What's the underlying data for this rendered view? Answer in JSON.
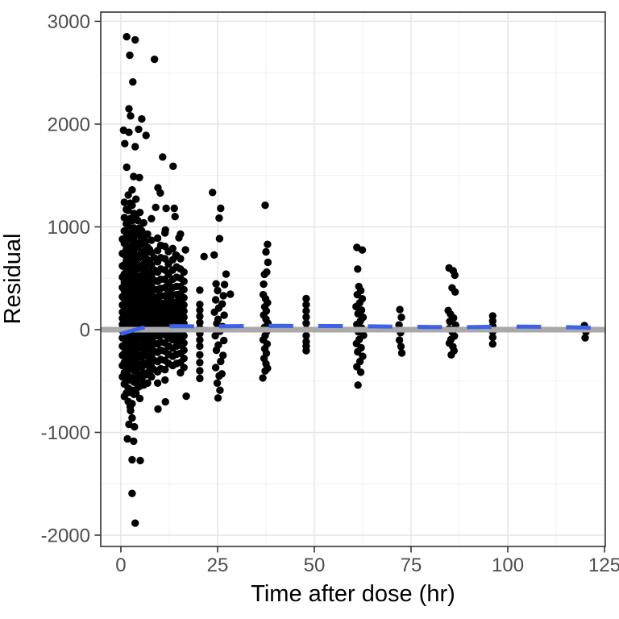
{
  "chart_data": {
    "type": "scatter",
    "title": "",
    "xlabel": "Time after dose (hr)",
    "ylabel": "Residual",
    "xlim": [
      -5.2,
      125.2
    ],
    "ylim": [
      -2110,
      3090
    ],
    "x_ticks": [
      0,
      25,
      50,
      75,
      100,
      125
    ],
    "y_ticks": [
      3000,
      2000,
      1000,
      0,
      -1000,
      -2000
    ],
    "x_minor_ticks": [
      12.5,
      37.5,
      62.5,
      87.5,
      112.5
    ],
    "y_minor_ticks": [
      2500,
      1500,
      500,
      -500,
      -1500
    ],
    "grid": true,
    "legend": "none",
    "point_radius": 4.7,
    "colors": {
      "point": "#000000",
      "ref_line": "#a9a9a9",
      "smooth": "#3d62e7",
      "grid_major": "#e5e5e5",
      "grid_minor": "#f2f2f2",
      "panel_border": "#333333",
      "tick_mark": "#333333",
      "tick_text": "#4d4d4d",
      "title_text": "#000000"
    },
    "ref_line": {
      "y": 0,
      "width": 7
    },
    "smooth": {
      "style": "dashed",
      "width": 5,
      "dash": [
        30.5,
        31
      ],
      "points": [
        [
          0,
          -42
        ],
        [
          1.5,
          -25
        ],
        [
          3,
          -8
        ],
        [
          5,
          12
        ],
        [
          7,
          25
        ],
        [
          10,
          32
        ],
        [
          15,
          34
        ],
        [
          20,
          31
        ],
        [
          25,
          32
        ],
        [
          30,
          34
        ],
        [
          35,
          36
        ],
        [
          40,
          37
        ],
        [
          45,
          36
        ],
        [
          50,
          36
        ],
        [
          55,
          35
        ],
        [
          60,
          34
        ],
        [
          65,
          32
        ],
        [
          70,
          29
        ],
        [
          75,
          28
        ],
        [
          80,
          26
        ],
        [
          85,
          25
        ],
        [
          90,
          24
        ],
        [
          95,
          27
        ],
        [
          100,
          30
        ],
        [
          105,
          29
        ],
        [
          110,
          27
        ],
        [
          115,
          24
        ],
        [
          122,
          18
        ]
      ]
    },
    "columns": [
      {
        "t": 0.4,
        "v": [
          880,
          740,
          620,
          510,
          410,
          320,
          240,
          170,
          110,
          50,
          -10,
          -80,
          -160,
          -250,
          -350,
          -460
        ]
      },
      {
        "t": 0.9,
        "v": [
          1240,
          1090,
          960,
          840,
          730,
          630,
          540,
          460,
          380,
          300,
          230,
          170,
          110,
          50,
          -10,
          -80,
          -150,
          -230,
          -320,
          -420,
          -530,
          -650
        ]
      },
      {
        "t": 1.4,
        "v": [
          1170,
          1030,
          900,
          780,
          670,
          570,
          490,
          410,
          330,
          260,
          200,
          140,
          80,
          20,
          -50,
          -120,
          -200,
          -290,
          -390,
          -500,
          -620
        ]
      },
      {
        "t": 1.9,
        "v": [
          1310,
          1160,
          1010,
          880,
          760,
          650,
          550,
          460,
          380,
          310,
          240,
          180,
          120,
          60,
          0,
          -70,
          -150,
          -240,
          -340,
          -450,
          -570,
          -700
        ]
      },
      {
        "t": 2.4,
        "v": [
          1230,
          1080,
          940,
          810,
          700,
          600,
          500,
          420,
          340,
          270,
          210,
          150,
          90,
          30,
          -40,
          -110,
          -190,
          -280,
          -380,
          -490,
          -610,
          -750
        ]
      },
      {
        "t": 2.9,
        "v": [
          1360,
          1210,
          1060,
          920,
          790,
          670,
          560,
          470,
          390,
          310,
          240,
          180,
          120,
          60,
          -10,
          -90,
          -170,
          -260,
          -360,
          -470,
          -590,
          -720,
          -860
        ]
      },
      {
        "t": 3.4,
        "v": [
          1130,
          990,
          860,
          740,
          640,
          540,
          460,
          380,
          300,
          240,
          180,
          120,
          60,
          0,
          -60,
          -130,
          -210,
          -300,
          -400,
          -510,
          -630
        ]
      },
      {
        "t": 3.9,
        "v": [
          1270,
          1110,
          960,
          830,
          710,
          610,
          510,
          430,
          350,
          280,
          210,
          150,
          90,
          30,
          -40,
          -120,
          -200,
          -290,
          -390,
          -500,
          -620
        ]
      },
      {
        "t": 4.4,
        "v": [
          1060,
          920,
          800,
          690,
          590,
          500,
          420,
          340,
          270,
          210,
          150,
          90,
          30,
          -30,
          -100,
          -180,
          -260,
          -350,
          -450,
          -560
        ]
      },
      {
        "t": 4.9,
        "v": [
          1140,
          990,
          850,
          730,
          620,
          520,
          440,
          360,
          290,
          220,
          160,
          100,
          40,
          -20,
          -90,
          -170,
          -250,
          -340,
          -440,
          -550,
          -670
        ]
      },
      {
        "t": 5.4,
        "v": [
          960,
          830,
          710,
          600,
          500,
          420,
          340,
          270,
          210,
          150,
          90,
          30,
          -30,
          -100,
          -180,
          -270,
          -370,
          -480
        ]
      },
      {
        "t": 5.9,
        "v": [
          1040,
          890,
          760,
          640,
          540,
          450,
          370,
          300,
          230,
          170,
          110,
          50,
          -10,
          -80,
          -160,
          -240,
          -330,
          -430,
          -540
        ]
      },
      {
        "t": 6.4,
        "v": [
          860,
          740,
          630,
          530,
          440,
          360,
          290,
          220,
          160,
          100,
          40,
          -20,
          -90,
          -170,
          -250,
          -340,
          -440
        ]
      },
      {
        "t": 6.9,
        "v": [
          930,
          800,
          680,
          570,
          470,
          390,
          310,
          240,
          180,
          120,
          60,
          0,
          -70,
          -150,
          -230,
          -320,
          -420,
          -520
        ]
      },
      {
        "t": 7.4,
        "v": [
          780,
          660,
          560,
          470,
          390,
          310,
          240,
          180,
          120,
          60,
          0,
          -60,
          -130,
          -210,
          -300,
          -400
        ]
      },
      {
        "t": 7.9,
        "v": [
          1080,
          870,
          750,
          630,
          530,
          440,
          360,
          290,
          220,
          160,
          100,
          40,
          -20,
          -90,
          -170,
          -260,
          -360,
          -460
        ]
      },
      {
        "t": 8.6,
        "v": [
          700,
          580,
          480,
          390,
          310,
          240,
          180,
          120,
          60,
          0,
          -60,
          -130,
          -210,
          -300,
          -390
        ]
      },
      {
        "t": 9.5,
        "v": [
          890,
          770,
          660,
          560,
          470,
          390,
          320,
          250,
          190,
          130,
          70,
          10,
          -60,
          -140,
          -220,
          -310,
          -410,
          -520
        ]
      },
      {
        "t": 10.3,
        "v": [
          820,
          700,
          590,
          490,
          400,
          330,
          260,
          200,
          140,
          80,
          20,
          -50,
          -120,
          -200,
          -290,
          -380
        ]
      },
      {
        "t": 11.4,
        "v": [
          940,
          810,
          690,
          580,
          490,
          410,
          330,
          260,
          200,
          140,
          80,
          20,
          -50,
          -130,
          -210,
          -300,
          -390,
          -490
        ]
      },
      {
        "t": 12.3,
        "v": [
          760,
          640,
          540,
          450,
          370,
          300,
          230,
          170,
          110,
          50,
          -10,
          -80,
          -160,
          -240,
          -330
        ]
      },
      {
        "t": 13.4,
        "v": [
          790,
          680,
          580,
          490,
          410,
          340,
          270,
          210,
          150,
          90,
          30,
          -30,
          -100,
          -180,
          -260,
          -350
        ]
      },
      {
        "t": 14.4,
        "v": [
          720,
          610,
          510,
          420,
          340,
          270,
          210,
          150,
          90,
          30,
          -30,
          -90,
          -160,
          -240,
          -330
        ]
      },
      {
        "t": 15.4,
        "v": [
          690,
          590,
          500,
          420,
          350,
          280,
          220,
          160,
          100,
          40,
          -20,
          -80,
          -150,
          -230,
          -320,
          -420
        ]
      },
      {
        "t": 16.3,
        "v": [
          560,
          470,
          390,
          310,
          240,
          180,
          120,
          60,
          0,
          -60,
          -130,
          -200,
          -280,
          -370
        ]
      },
      {
        "t": 20.4,
        "v": [
          385,
          245,
          190,
          130,
          70,
          15,
          -40,
          -100,
          -160,
          -245,
          -320,
          -400,
          -475
        ]
      },
      {
        "t": 47.9,
        "v": [
          302,
          242,
          182,
          122,
          62,
          2,
          -58,
          -118,
          -162,
          -205
        ]
      },
      {
        "t": 96.1,
        "v": [
          134,
          84,
          34,
          -20,
          -76,
          -140
        ]
      }
    ],
    "points": [
      [
        1.5,
        2850
      ],
      [
        3.7,
        2820
      ],
      [
        2.3,
        2670
      ],
      [
        8.7,
        2630
      ],
      [
        3.1,
        2410
      ],
      [
        2.1,
        2150
      ],
      [
        2.5,
        2080
      ],
      [
        5.4,
        2050
      ],
      [
        4.6,
        1950
      ],
      [
        0.7,
        1940
      ],
      [
        2.1,
        1920
      ],
      [
        6.5,
        1890
      ],
      [
        1.0,
        1810
      ],
      [
        3.7,
        1780
      ],
      [
        10.8,
        1680
      ],
      [
        13.5,
        1590
      ],
      [
        1.5,
        1580
      ],
      [
        3.3,
        1490
      ],
      [
        4.8,
        1480
      ],
      [
        9.6,
        1380
      ],
      [
        10.2,
        1330
      ],
      [
        9.0,
        1190
      ],
      [
        11.7,
        1180
      ],
      [
        13.8,
        1180
      ],
      [
        14.0,
        1100
      ],
      [
        11.5,
        970
      ],
      [
        15.4,
        930
      ],
      [
        15.0,
        893
      ],
      [
        16.7,
        776
      ],
      [
        14.2,
        727
      ],
      [
        2.5,
        -789
      ],
      [
        9.6,
        -773
      ],
      [
        11.5,
        -703
      ],
      [
        16.9,
        -648
      ],
      [
        2.1,
        -922
      ],
      [
        3.5,
        -946
      ],
      [
        1.7,
        -1063
      ],
      [
        3.3,
        -1086
      ],
      [
        2.9,
        -1266
      ],
      [
        5.0,
        -1274
      ],
      [
        2.9,
        -1594
      ],
      [
        3.7,
        -1883
      ],
      [
        21.5,
        711
      ],
      [
        23.7,
        1335
      ],
      [
        25.8,
        1180
      ],
      [
        25.4,
        1085
      ],
      [
        25.5,
        885
      ],
      [
        24.1,
        727
      ],
      [
        27.2,
        540
      ],
      [
        24.6,
        445
      ],
      [
        26.8,
        438
      ],
      [
        25.0,
        380
      ],
      [
        26.5,
        330
      ],
      [
        24.5,
        290
      ],
      [
        26.2,
        250
      ],
      [
        25.3,
        210
      ],
      [
        24.2,
        170
      ],
      [
        26.7,
        140
      ],
      [
        25.1,
        100
      ],
      [
        24.8,
        60
      ],
      [
        26.3,
        30
      ],
      [
        25.6,
        -15
      ],
      [
        24.4,
        -60
      ],
      [
        26.6,
        -105
      ],
      [
        25.2,
        -150
      ],
      [
        24.7,
        -200
      ],
      [
        26.4,
        -250
      ],
      [
        25.8,
        -310
      ],
      [
        24.5,
        -370
      ],
      [
        26.1,
        -430
      ],
      [
        25.4,
        -450
      ],
      [
        24.9,
        -520
      ],
      [
        25.6,
        -590
      ],
      [
        25.1,
        -665
      ],
      [
        28.3,
        345
      ],
      [
        37.3,
        1210
      ],
      [
        37.9,
        830
      ],
      [
        37.5,
        757
      ],
      [
        38.0,
        655
      ],
      [
        37.7,
        560
      ],
      [
        37.1,
        538
      ],
      [
        36.9,
        442
      ],
      [
        36.8,
        340
      ],
      [
        37.4,
        300
      ],
      [
        37.9,
        262
      ],
      [
        37.2,
        222
      ],
      [
        37.6,
        182
      ],
      [
        36.9,
        142
      ],
      [
        37.5,
        102
      ],
      [
        38.0,
        62
      ],
      [
        37.1,
        22
      ],
      [
        37.7,
        -18
      ],
      [
        37.3,
        -58
      ],
      [
        36.8,
        -100
      ],
      [
        37.8,
        -140
      ],
      [
        37.2,
        -186
      ],
      [
        37.6,
        -230
      ],
      [
        37.0,
        -280
      ],
      [
        37.5,
        -332
      ],
      [
        37.9,
        -376
      ],
      [
        37.3,
        -402
      ],
      [
        36.7,
        -470
      ],
      [
        61.0,
        800
      ],
      [
        62.4,
        775
      ],
      [
        61.2,
        590
      ],
      [
        61.5,
        420
      ],
      [
        62.0,
        380
      ],
      [
        61.1,
        340
      ],
      [
        62.4,
        300
      ],
      [
        61.7,
        260
      ],
      [
        60.8,
        224
      ],
      [
        62.2,
        190
      ],
      [
        61.3,
        154
      ],
      [
        62.6,
        120
      ],
      [
        61.9,
        84
      ],
      [
        61.0,
        50
      ],
      [
        62.3,
        14
      ],
      [
        61.4,
        -22
      ],
      [
        62.7,
        -56
      ],
      [
        61.6,
        -96
      ],
      [
        60.9,
        -136
      ],
      [
        62.1,
        -176
      ],
      [
        61.2,
        -216
      ],
      [
        62.5,
        -260
      ],
      [
        61.8,
        -310
      ],
      [
        61.0,
        -362
      ],
      [
        62.0,
        -414
      ],
      [
        61.3,
        -540
      ],
      [
        72.1,
        195
      ],
      [
        72.5,
        120
      ],
      [
        71.9,
        45
      ],
      [
        72.3,
        -30
      ],
      [
        72.0,
        -102
      ],
      [
        72.4,
        -164
      ],
      [
        72.6,
        -228
      ],
      [
        84.8,
        600
      ],
      [
        85.9,
        572
      ],
      [
        86.3,
        530
      ],
      [
        85.6,
        406
      ],
      [
        86.4,
        366
      ],
      [
        84.6,
        186
      ],
      [
        85.2,
        150
      ],
      [
        86.0,
        114
      ],
      [
        85.0,
        80
      ],
      [
        86.5,
        44
      ],
      [
        84.8,
        8
      ],
      [
        85.7,
        -26
      ],
      [
        86.2,
        -62
      ],
      [
        85.3,
        -96
      ],
      [
        84.9,
        -132
      ],
      [
        85.8,
        -166
      ],
      [
        86.1,
        -206
      ],
      [
        85.4,
        -246
      ],
      [
        119.8,
        40
      ],
      [
        120.2,
        -22
      ],
      [
        120.0,
        -80
      ]
    ]
  }
}
